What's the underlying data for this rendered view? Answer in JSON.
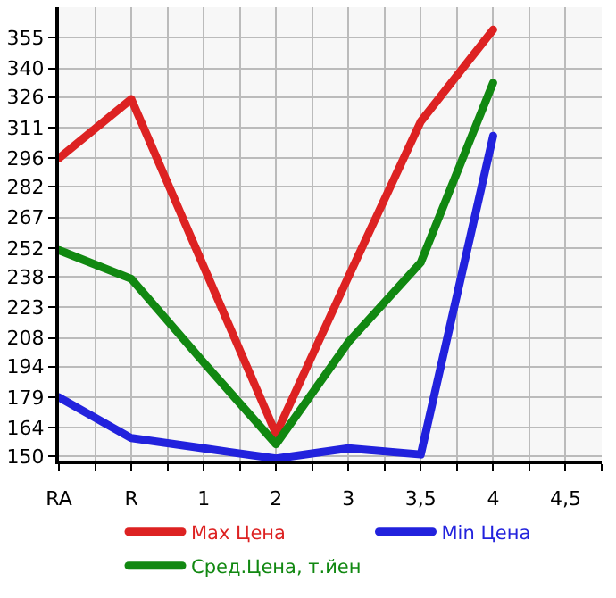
{
  "chart_data": {
    "type": "line",
    "categories": [
      "RA",
      "R",
      "1",
      "2",
      "3",
      "3,5",
      "4",
      "4,5"
    ],
    "series": [
      {
        "name": "Max Цена",
        "color": "#dd2222",
        "values": [
          296,
          325,
          243,
          161,
          238,
          314,
          359,
          null
        ]
      },
      {
        "name": "Min Цена",
        "color": "#2222dd",
        "values": [
          179,
          159,
          154,
          149,
          154,
          151,
          307,
          null
        ]
      },
      {
        "name": "Сред.Цена, т.йен",
        "color": "#118811",
        "values": [
          251,
          237,
          196,
          156,
          206,
          245,
          333,
          null
        ]
      }
    ],
    "ylim": [
      148,
      370
    ],
    "yticks": [
      150,
      164,
      179,
      194,
      208,
      223,
      238,
      252,
      267,
      282,
      296,
      311,
      326,
      340,
      355
    ],
    "grid": true,
    "legend": "bottom",
    "marker": "none",
    "line_style": "solid"
  }
}
